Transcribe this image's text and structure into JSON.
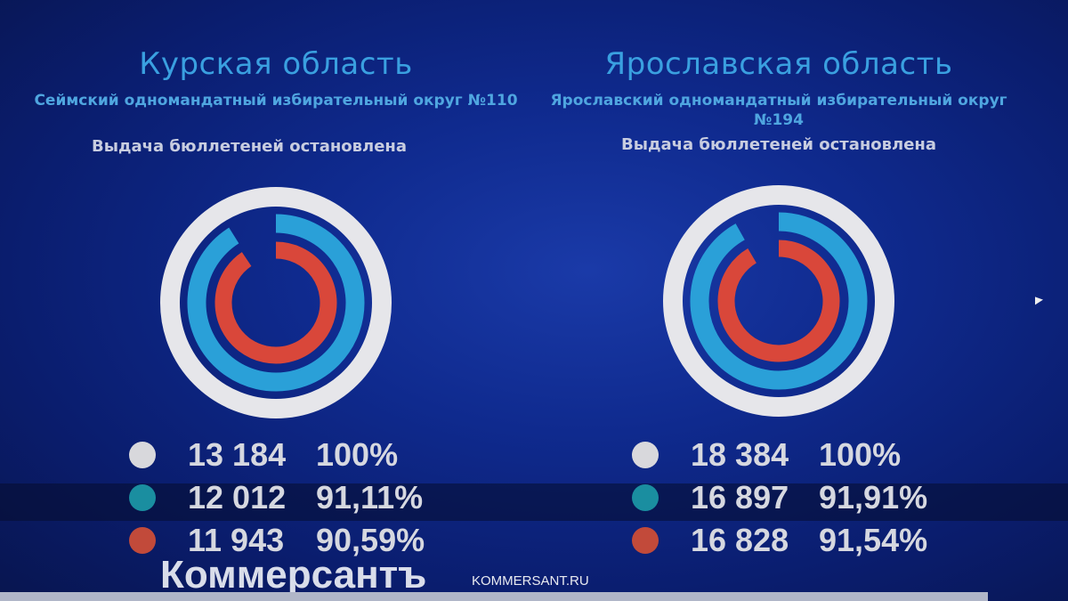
{
  "colors": {
    "total": "#d8d8dc",
    "issued": "#2aa0d8",
    "red": "#d9473a",
    "ring_outer": "#e6e6ea"
  },
  "chart_data": [
    {
      "type": "radial-bar",
      "title": "Курская область",
      "subtitle": "Сеймский одномандатный избирательный округ №110",
      "status": "Выдача бюллетеней остановлена",
      "series": [
        {
          "value": "13 184",
          "percent": "100%",
          "pct": 100,
          "color": "#d8d8dc"
        },
        {
          "value": "12 012",
          "percent": "91,11%",
          "pct": 91.11,
          "color": "#2aa0d8"
        },
        {
          "value": "11 943",
          "percent": "90,59%",
          "pct": 90.59,
          "color": "#d9473a"
        }
      ]
    },
    {
      "type": "radial-bar",
      "title": "Ярославская область",
      "subtitle": "Ярославский одномандатный избирательный округ №194",
      "status": "Выдача бюллетеней остановлена",
      "series": [
        {
          "value": "18 384",
          "percent": "100%",
          "pct": 100,
          "color": "#d8d8dc"
        },
        {
          "value": "16 897",
          "percent": "91,91%",
          "pct": 91.91,
          "color": "#2aa0d8"
        },
        {
          "value": "16 828",
          "percent": "91,54%",
          "pct": 91.54,
          "color": "#d9473a"
        }
      ]
    }
  ],
  "watermark": {
    "logo": "Коммерсантъ",
    "site": "KOMMERSANT.RU"
  }
}
